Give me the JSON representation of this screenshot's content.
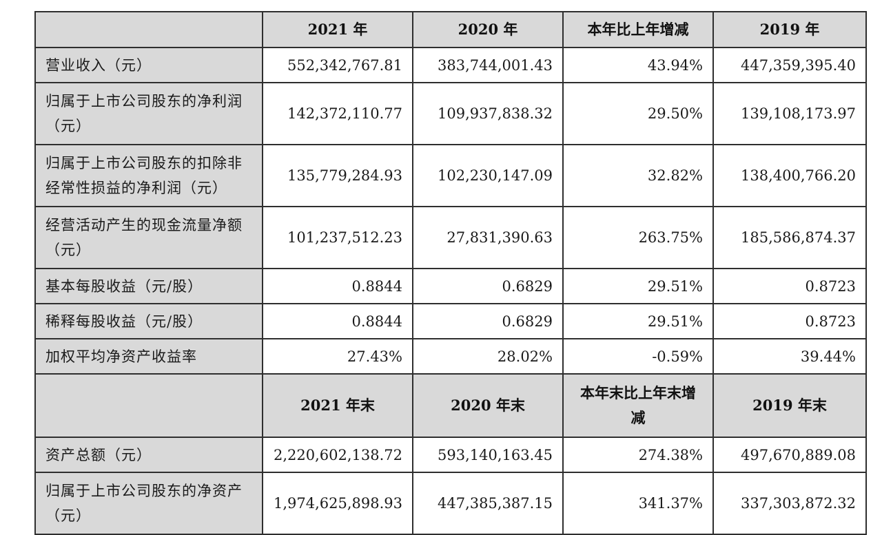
{
  "header1": [
    "",
    "2021 年",
    "2020 年",
    "本年比上年增减",
    "2019 年"
  ],
  "rows1": [
    {
      "label": "营业收入（元）",
      "values": [
        "552,342,767.81",
        "383,744,001.43",
        "43.94%",
        "447,359,395.40"
      ],
      "tall": false
    },
    {
      "label": "归属于上市公司股东的净利润（元）",
      "values": [
        "142,372,110.77",
        "109,937,838.32",
        "29.50%",
        "139,108,173.97"
      ],
      "tall": true
    },
    {
      "label": "归属于上市公司股东的扣除非经常性损益的净利润（元）",
      "values": [
        "135,779,284.93",
        "102,230,147.09",
        "32.82%",
        "138,400,766.20"
      ],
      "tall": true
    },
    {
      "label": "经营活动产生的现金流量净额（元）",
      "values": [
        "101,237,512.23",
        "27,831,390.63",
        "263.75%",
        "185,586,874.37"
      ],
      "tall": true
    },
    {
      "label": "基本每股收益（元/股）",
      "values": [
        "0.8844",
        "0.6829",
        "29.51%",
        "0.8723"
      ],
      "tall": false
    },
    {
      "label": "稀释每股收益（元/股）",
      "values": [
        "0.8844",
        "0.6829",
        "29.51%",
        "0.8723"
      ],
      "tall": false
    },
    {
      "label": "加权平均净资产收益率",
      "values": [
        "27.43%",
        "28.02%",
        "-0.59%",
        "39.44%"
      ],
      "tall": false
    }
  ],
  "header2": [
    "",
    "2021 年末",
    "2020 年末",
    "本年末比上年末增减",
    "2019 年末"
  ],
  "rows2": [
    {
      "label": "资产总额（元）",
      "values": [
        "2,220,602,138.72",
        "593,140,163.45",
        "274.38%",
        "497,670,889.08"
      ],
      "tall": false
    },
    {
      "label": "归属于上市公司股东的净资产（元）",
      "values": [
        "1,974,625,898.93",
        "447,385,387.15",
        "341.37%",
        "337,303,872.32"
      ],
      "tall": true
    }
  ]
}
